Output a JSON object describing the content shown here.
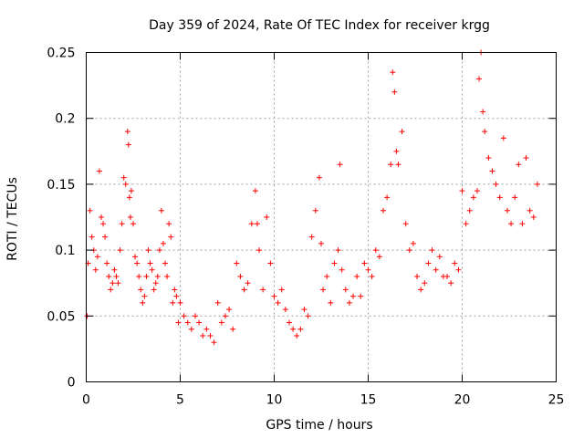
{
  "chart_data": {
    "type": "scatter",
    "title": "Day 359 of 2024, Rate Of TEC Index for receiver krgg",
    "xlabel": "GPS time / hours",
    "ylabel": "ROTI / TECUs",
    "xlim": [
      0,
      25
    ],
    "ylim": [
      0,
      0.25
    ],
    "x_ticks": [
      0,
      5,
      10,
      15,
      20,
      25
    ],
    "x_tick_labels": [
      "0",
      "5",
      "10",
      "15",
      "20",
      "25"
    ],
    "y_ticks": [
      0,
      0.05,
      0.1,
      0.15,
      0.2,
      0.25
    ],
    "y_tick_labels": [
      "0",
      "0.05",
      "0.1",
      "0.15",
      "0.2",
      "0.25"
    ],
    "grid": true,
    "marker": "plus",
    "color": "#ff0000",
    "series": [
      {
        "name": "ROTI",
        "x": [
          0.05,
          0.1,
          0.2,
          0.3,
          0.4,
          0.5,
          0.6,
          0.7,
          0.8,
          0.9,
          1.0,
          1.1,
          1.2,
          1.3,
          1.4,
          1.5,
          1.6,
          1.7,
          1.8,
          1.9,
          2.0,
          2.1,
          2.2,
          2.25,
          2.3,
          2.35,
          2.4,
          2.5,
          2.6,
          2.7,
          2.8,
          2.9,
          3.0,
          3.1,
          3.2,
          3.3,
          3.4,
          3.5,
          3.6,
          3.7,
          3.8,
          3.9,
          4.0,
          4.1,
          4.2,
          4.3,
          4.4,
          4.5,
          4.6,
          4.7,
          4.8,
          4.9,
          5.0,
          5.2,
          5.4,
          5.6,
          5.8,
          6.0,
          6.2,
          6.4,
          6.6,
          6.8,
          7.0,
          7.2,
          7.4,
          7.6,
          7.8,
          8.0,
          8.2,
          8.4,
          8.6,
          8.8,
          9.0,
          9.1,
          9.2,
          9.4,
          9.6,
          9.8,
          10.0,
          10.2,
          10.4,
          10.6,
          10.8,
          11.0,
          11.2,
          11.4,
          11.6,
          11.8,
          12.0,
          12.2,
          12.4,
          12.5,
          12.6,
          12.8,
          13.0,
          13.2,
          13.4,
          13.5,
          13.6,
          13.8,
          14.0,
          14.2,
          14.4,
          14.6,
          14.8,
          15.0,
          15.2,
          15.4,
          15.6,
          15.8,
          16.0,
          16.2,
          16.3,
          16.4,
          16.5,
          16.6,
          16.8,
          17.0,
          17.2,
          17.4,
          17.6,
          17.8,
          18.0,
          18.2,
          18.4,
          18.6,
          18.8,
          19.0,
          19.2,
          19.4,
          19.6,
          19.8,
          20.0,
          20.2,
          20.4,
          20.6,
          20.8,
          20.9,
          21.0,
          21.1,
          21.2,
          21.4,
          21.6,
          21.8,
          22.0,
          22.2,
          22.4,
          22.6,
          22.8,
          23.0,
          23.2,
          23.4,
          23.6,
          23.8,
          24.0
        ],
        "values": [
          0.05,
          0.09,
          0.13,
          0.11,
          0.1,
          0.085,
          0.095,
          0.16,
          0.125,
          0.12,
          0.11,
          0.09,
          0.08,
          0.07,
          0.075,
          0.085,
          0.08,
          0.075,
          0.1,
          0.12,
          0.155,
          0.15,
          0.19,
          0.18,
          0.14,
          0.125,
          0.145,
          0.12,
          0.095,
          0.09,
          0.08,
          0.07,
          0.06,
          0.065,
          0.08,
          0.1,
          0.09,
          0.085,
          0.07,
          0.075,
          0.08,
          0.1,
          0.13,
          0.105,
          0.09,
          0.08,
          0.12,
          0.11,
          0.06,
          0.07,
          0.065,
          0.045,
          0.06,
          0.05,
          0.045,
          0.04,
          0.05,
          0.045,
          0.035,
          0.04,
          0.035,
          0.03,
          0.06,
          0.045,
          0.05,
          0.055,
          0.04,
          0.09,
          0.08,
          0.07,
          0.075,
          0.12,
          0.145,
          0.12,
          0.1,
          0.07,
          0.125,
          0.09,
          0.065,
          0.06,
          0.07,
          0.055,
          0.045,
          0.04,
          0.035,
          0.04,
          0.055,
          0.05,
          0.11,
          0.13,
          0.155,
          0.105,
          0.07,
          0.08,
          0.06,
          0.09,
          0.1,
          0.165,
          0.085,
          0.07,
          0.06,
          0.065,
          0.08,
          0.065,
          0.09,
          0.085,
          0.08,
          0.1,
          0.095,
          0.13,
          0.14,
          0.165,
          0.235,
          0.22,
          0.175,
          0.165,
          0.19,
          0.12,
          0.1,
          0.105,
          0.08,
          0.07,
          0.075,
          0.09,
          0.1,
          0.085,
          0.095,
          0.08,
          0.08,
          0.075,
          0.09,
          0.085,
          0.145,
          0.12,
          0.13,
          0.14,
          0.145,
          0.23,
          0.25,
          0.205,
          0.19,
          0.17,
          0.16,
          0.15,
          0.14,
          0.185,
          0.13,
          0.12,
          0.14,
          0.165,
          0.12,
          0.17,
          0.13,
          0.125,
          0.15
        ]
      }
    ]
  }
}
